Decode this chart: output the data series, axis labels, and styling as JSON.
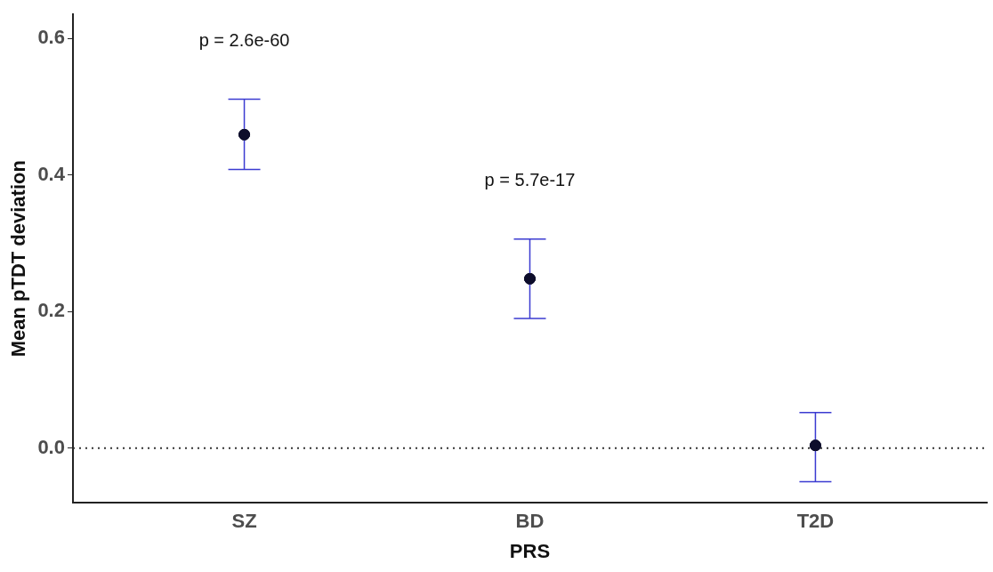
{
  "chart_data": {
    "type": "scatter",
    "xlabel": "PRS",
    "ylabel": "Mean pTDT deviation",
    "categories": [
      "SZ",
      "BD",
      "T2D"
    ],
    "series": [
      {
        "color": "#0d0d2b",
        "values": [
          0.459,
          0.248,
          0.004
        ],
        "errors": [
          [
            0.408,
            0.511
          ],
          [
            0.19,
            0.306
          ],
          [
            -0.049,
            0.052
          ]
        ]
      }
    ],
    "ylim": [
      -0.08,
      0.635
    ],
    "yticks": [
      {
        "value": 0,
        "label": "0.0"
      },
      0.2,
      0.4,
      0.6
    ],
    "grid": false,
    "legend": false,
    "marker": "circle",
    "ref_lines": [
      {
        "axis": "y",
        "value": 0,
        "line_style": "dotted",
        "color": "#333333"
      }
    ],
    "annotations": [
      "p = 2.6e-60",
      "p = 5.7e-17"
    ]
  }
}
